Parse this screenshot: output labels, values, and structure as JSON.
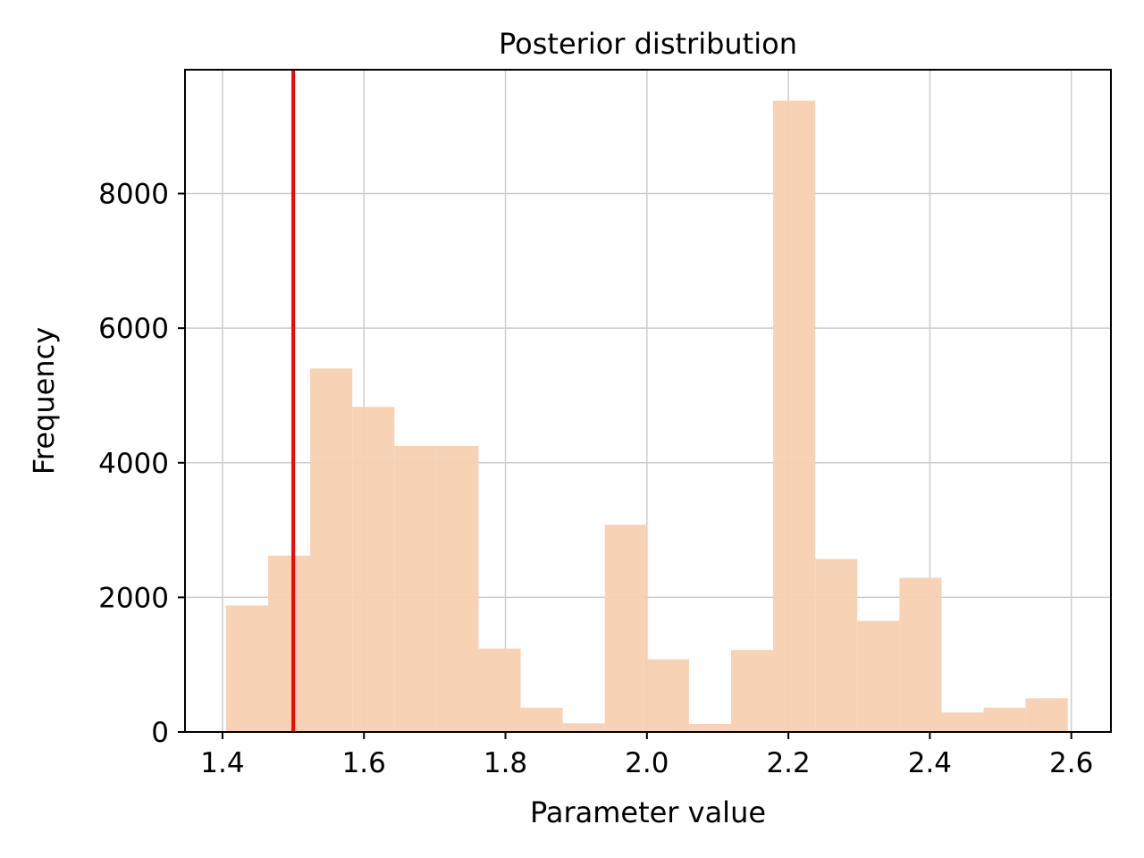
{
  "chart_data": {
    "type": "bar",
    "title": "Posterior distribution",
    "xlabel": "Parameter value",
    "ylabel": "Frequency",
    "xlim": [
      1.347,
      2.656
    ],
    "ylim": [
      0,
      9840
    ],
    "grid": true,
    "xticks": [
      1.4,
      1.6,
      1.8,
      2.0,
      2.2,
      2.4,
      2.6
    ],
    "xtick_labels": [
      "1.4",
      "1.6",
      "1.8",
      "2.0",
      "2.2",
      "2.4",
      "2.6"
    ],
    "yticks": [
      0,
      2000,
      4000,
      6000,
      8000
    ],
    "ytick_labels": [
      "0",
      "2000",
      "4000",
      "6000",
      "8000"
    ],
    "bin_start": 1.405,
    "bin_width": 0.0595,
    "values": [
      1880,
      2620,
      5400,
      4830,
      4250,
      4250,
      1240,
      360,
      130,
      3080,
      1080,
      120,
      1220,
      9380,
      2570,
      1650,
      2290,
      290,
      360,
      500
    ],
    "bar_color": "#f8d0b0",
    "reference_line": {
      "x": 1.5,
      "color": "#ff0000"
    }
  }
}
